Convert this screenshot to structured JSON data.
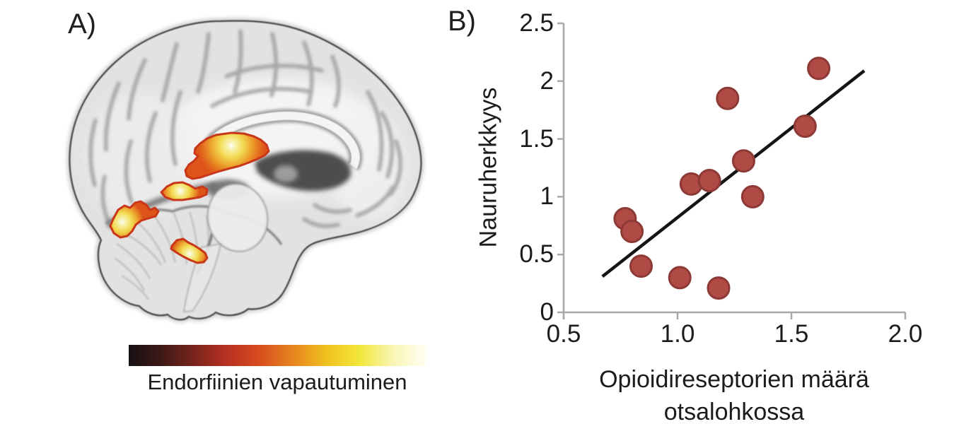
{
  "panel_a": {
    "label": "A)",
    "colorbar_label": "Endorfiinien vapautuminen",
    "colorbar_colors": [
      "#171013",
      "#3f1a17",
      "#7a241c",
      "#b93122",
      "#d94e1e",
      "#e8861f",
      "#efc31e",
      "#f2e73c",
      "#f9f5b4",
      "#fffef2"
    ],
    "activation_edge_color": "#c9371a"
  },
  "panel_b": {
    "label": "B)"
  },
  "chart_data": {
    "type": "scatter",
    "title": "",
    "ylabel": "Nauruherkkyys",
    "xlabel_line1": "Opioidireseptorien määrä",
    "xlabel_line2": "otsalohkossa",
    "xlim": [
      0.5,
      2.0
    ],
    "ylim": [
      0,
      2.5
    ],
    "grid": false,
    "legend": null,
    "x_ticks": [
      {
        "v": 0.5,
        "label": "0.5"
      },
      {
        "v": 1.0,
        "label": "1.0"
      },
      {
        "v": 1.5,
        "label": "1.5"
      },
      {
        "v": 2.0,
        "label": "2.0"
      }
    ],
    "y_ticks": [
      {
        "v": 0,
        "label": "0"
      },
      {
        "v": 0.5,
        "label": "0.5"
      },
      {
        "v": 1,
        "label": "1"
      },
      {
        "v": 1.5,
        "label": "1.5"
      },
      {
        "v": 2,
        "label": "2"
      },
      {
        "v": 2.5,
        "label": "2.5"
      }
    ],
    "points": [
      {
        "x": 0.77,
        "y": 0.81
      },
      {
        "x": 0.8,
        "y": 0.7
      },
      {
        "x": 0.84,
        "y": 0.4
      },
      {
        "x": 1.01,
        "y": 0.3
      },
      {
        "x": 1.06,
        "y": 1.11
      },
      {
        "x": 1.14,
        "y": 1.14
      },
      {
        "x": 1.18,
        "y": 0.21
      },
      {
        "x": 1.22,
        "y": 1.85
      },
      {
        "x": 1.29,
        "y": 1.31
      },
      {
        "x": 1.33,
        "y": 1.0
      },
      {
        "x": 1.56,
        "y": 1.61
      },
      {
        "x": 1.62,
        "y": 2.11
      }
    ],
    "trend_line": {
      "x1": 0.67,
      "y1": 0.31,
      "x2": 1.82,
      "y2": 2.09
    },
    "marker": {
      "fill": "#b04a45",
      "edge": "#8d3936",
      "radius_px": 15
    },
    "line_color": "#151515",
    "axis_color": "#a8a8a8"
  }
}
